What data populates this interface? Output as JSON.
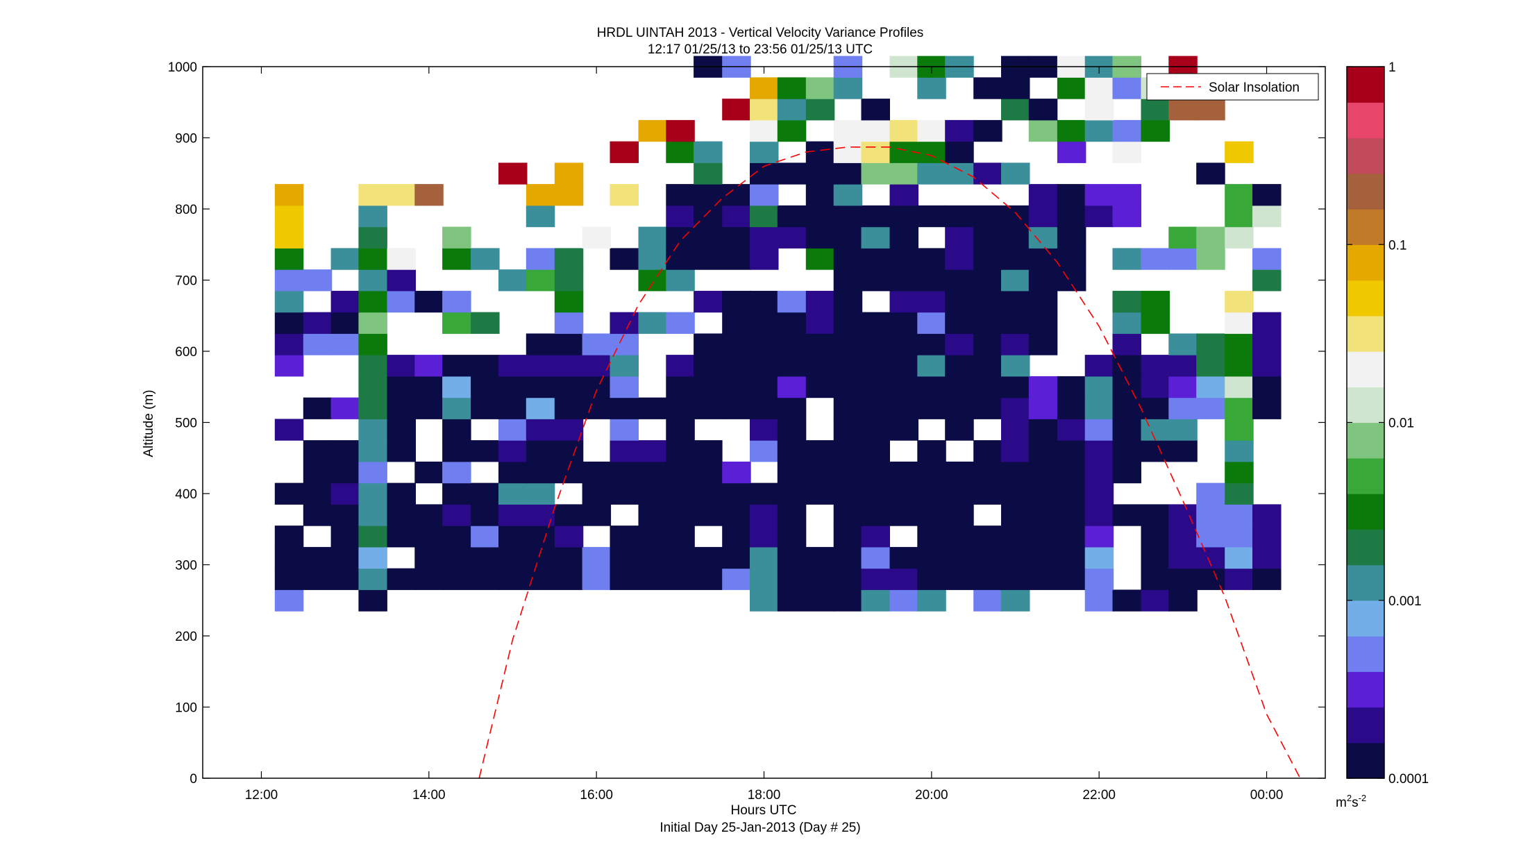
{
  "chart_data": {
    "type": "heatmap",
    "title_line1": "HRDL UINTAH 2013 - Vertical Velocity Variance Profiles",
    "title_line2": "12:17 01/25/13 to 23:56 01/25/13  UTC",
    "xlabel": "Hours UTC",
    "xlabel_sub": "Initial Day 25-Jan-2013 (Day # 25)",
    "ylabel": "Altitude (m)",
    "x_range_hours": [
      11.3,
      24.7
    ],
    "y_range_m": [
      0,
      1000
    ],
    "x_ticks": [
      {
        "value": 12,
        "label": "12:00"
      },
      {
        "value": 14,
        "label": "14:00"
      },
      {
        "value": 16,
        "label": "16:00"
      },
      {
        "value": 18,
        "label": "18:00"
      },
      {
        "value": 20,
        "label": "20:00"
      },
      {
        "value": 22,
        "label": "22:00"
      },
      {
        "value": 24,
        "label": "00:00"
      }
    ],
    "y_ticks": [
      0,
      100,
      200,
      300,
      400,
      500,
      600,
      700,
      800,
      900,
      1000
    ],
    "colorbar": {
      "scale": "log",
      "range": [
        0.0001,
        1
      ],
      "ticks": [
        {
          "value": 1,
          "label": "1"
        },
        {
          "value": 0.1,
          "label": "0.1"
        },
        {
          "value": 0.01,
          "label": "0.01"
        },
        {
          "value": 0.001,
          "label": "0.001"
        },
        {
          "value": 0.0001,
          "label": "0.0001"
        }
      ],
      "unit_base": "m",
      "unit_sup1": "2",
      "unit_mid": "s",
      "unit_sup2": "-2",
      "colors_low_to_high": [
        "#0b0b45",
        "#2a0a88",
        "#5b1fd6",
        "#6f7ff0",
        "#74aee8",
        "#3a8f9a",
        "#1e7a45",
        "#0a7a0a",
        "#38a838",
        "#7fc47f",
        "#cfe5cf",
        "#f2f2f2",
        "#f2e27a",
        "#f0c800",
        "#e5a800",
        "#c07a28",
        "#a5603c",
        "#c04a5a",
        "#e8456a",
        "#a8001a"
      ]
    },
    "legend": {
      "label": "Solar Insolation",
      "placement": "top-right",
      "color": "#ff0000"
    },
    "solar_insolation_curve_hours": [
      14.6,
      15.0,
      15.5,
      16.0,
      16.5,
      17.0,
      17.5,
      18.0,
      18.5,
      19.0,
      19.5,
      20.0,
      20.5,
      21.0,
      21.5,
      22.0,
      22.5,
      23.0,
      23.5,
      24.0,
      24.4
    ],
    "solar_insolation_curve_altitude": [
      0,
      195,
      380,
      545,
      665,
      755,
      815,
      860,
      880,
      887,
      887,
      875,
      845,
      795,
      725,
      635,
      520,
      390,
      255,
      90,
      0
    ],
    "time_hours": [
      12.33,
      12.67,
      13.0,
      13.33,
      13.67,
      14.0,
      14.33,
      14.67,
      15.0,
      15.33,
      15.67,
      16.0,
      16.33,
      16.67,
      17.0,
      17.33,
      17.67,
      18.0,
      18.33,
      18.67,
      19.0,
      19.33,
      19.67,
      20.0,
      20.33,
      20.67,
      21.0,
      21.33,
      21.67,
      22.0,
      22.33,
      22.67,
      23.0,
      23.33,
      23.67,
      24.0
    ],
    "altitude_bins_m": [
      250,
      280,
      310,
      340,
      370,
      400,
      430,
      460,
      490,
      520,
      550,
      580,
      610,
      640,
      670,
      700,
      730,
      760,
      790,
      820,
      850,
      880,
      910,
      940,
      970,
      1000
    ],
    "log10_variance_grid_note": "rows = altitude bins (low to high), columns = time_hours; null = no data",
    "log10_variance": [
      [
        -3.4,
        null,
        null,
        -3.9,
        null,
        null,
        null,
        null,
        null,
        null,
        null,
        null,
        null,
        null,
        null,
        null,
        null,
        -3.0,
        -4.0,
        -4.0,
        -4.0,
        -3.0,
        -3.3,
        -3.0,
        null,
        -3.4,
        -3.0,
        null,
        null,
        -3.4,
        -4.0,
        -3.7,
        -4.0,
        null,
        null,
        null
      ],
      [
        -4.0,
        -4.0,
        -4.0,
        -3.0,
        -4.0,
        -4.0,
        -4.0,
        -4.0,
        -4.0,
        -4.0,
        -4.0,
        -3.2,
        -4.0,
        -4.0,
        -4.0,
        -4.0,
        -3.3,
        -3.0,
        -4.0,
        -4.0,
        -4.0,
        -3.7,
        -3.7,
        -4.0,
        -4.0,
        -4.0,
        -4.0,
        -4.0,
        -4.0,
        -3.4,
        null,
        -4.0,
        -4.0,
        -4.0,
        -3.7,
        -3.9
      ],
      [
        -3.9,
        -4.0,
        -4.0,
        -3.1,
        null,
        -4.0,
        -4.0,
        -4.0,
        -4.0,
        -4.0,
        -4.0,
        -3.3,
        -4.0,
        -4.0,
        -4.0,
        -4.0,
        -4.0,
        -3.0,
        -4.0,
        -4.0,
        -3.9,
        -3.4,
        -4.0,
        -4.0,
        -4.0,
        -4.0,
        -4.0,
        -4.0,
        -4.0,
        -3.1,
        null,
        -3.9,
        -3.8,
        -3.8,
        -3.1,
        -3.8
      ],
      [
        -4.0,
        null,
        -3.9,
        -2.8,
        -4.0,
        -4.0,
        -4.0,
        -3.4,
        -4.0,
        -4.0,
        -3.7,
        null,
        -4.0,
        -4.0,
        -4.0,
        null,
        -3.9,
        -3.8,
        -4.0,
        null,
        -4.0,
        -3.8,
        null,
        -4.0,
        -3.9,
        -4.0,
        -3.9,
        -3.9,
        -4.0,
        -3.5,
        null,
        -4.0,
        -3.8,
        -3.2,
        -3.2,
        -3.8
      ],
      [
        null,
        -4.0,
        -4.0,
        -3.0,
        -4.0,
        -4.0,
        -3.7,
        -4.0,
        -3.8,
        -3.7,
        -4.0,
        -4.0,
        null,
        -4.0,
        -4.0,
        -4.0,
        -4.0,
        -3.7,
        -4.0,
        null,
        -4.0,
        -4.0,
        -4.0,
        -4.0,
        -3.9,
        null,
        -4.0,
        -4.0,
        -4.0,
        -3.7,
        -3.9,
        -4.0,
        -3.8,
        -3.2,
        -3.3,
        -3.8
      ],
      [
        -4.0,
        -4.0,
        -3.8,
        -2.9,
        -4.0,
        null,
        -4.0,
        -3.9,
        -3.0,
        -3.0,
        null,
        -4.0,
        -4.0,
        -4.0,
        -3.9,
        -4.0,
        -4.0,
        -3.9,
        -4.0,
        -4.0,
        -3.9,
        -4.0,
        -4.0,
        -4.0,
        -3.9,
        -4.0,
        -4.0,
        -4.0,
        -4.0,
        -3.7,
        null,
        null,
        null,
        -3.4,
        -2.7,
        null
      ],
      [
        null,
        -4.0,
        -4.0,
        -3.4,
        null,
        -4.0,
        -3.3,
        null,
        -4.0,
        -4.0,
        -4.0,
        -4.0,
        -4.0,
        -4.0,
        -4.0,
        -4.0,
        -3.5,
        null,
        -4.0,
        -4.0,
        -4.0,
        -4.0,
        -4.0,
        -4.0,
        -4.0,
        -4.0,
        -4.0,
        -4.0,
        -4.0,
        -3.7,
        -4.0,
        null,
        null,
        null,
        -2.5,
        null
      ],
      [
        null,
        -4.0,
        -4.0,
        -2.9,
        -3.9,
        null,
        -4.0,
        -4.0,
        -3.8,
        -4.0,
        -3.9,
        null,
        -3.8,
        -3.8,
        -3.9,
        -4.0,
        null,
        -3.4,
        -3.9,
        -4.0,
        -4.0,
        -4.0,
        null,
        -4.0,
        null,
        -4.0,
        -3.7,
        -4.0,
        -3.9,
        -3.8,
        -4.0,
        -4.0,
        -4.0,
        null,
        -2.9,
        null
      ],
      [
        -3.8,
        null,
        null,
        -3.0,
        -4.0,
        null,
        -4.0,
        null,
        -3.4,
        -3.6,
        -3.6,
        null,
        -3.4,
        null,
        -4.0,
        null,
        null,
        -3.6,
        -3.9,
        null,
        -4.0,
        -3.9,
        -4.0,
        null,
        -4.0,
        null,
        -3.7,
        -4.0,
        -3.8,
        -3.3,
        -3.9,
        -3.0,
        -3.0,
        null,
        -2.4,
        null
      ],
      [
        null,
        -4.0,
        -3.5,
        -2.7,
        -4.0,
        -4.0,
        -3.0,
        -4.0,
        -4.0,
        -3.1,
        -4.0,
        -4.0,
        -4.0,
        -4.0,
        -3.9,
        -4.0,
        -4.0,
        -4.0,
        -4.0,
        null,
        -4.0,
        -4.0,
        -4.0,
        -4.0,
        -4.0,
        -4.0,
        -3.7,
        -3.5,
        -4.0,
        -3.0,
        -4.0,
        -4.0,
        -3.2,
        -3.4,
        -2.4,
        -4.0
      ],
      [
        null,
        null,
        null,
        -2.7,
        -4.0,
        -4.0,
        -3.1,
        -4.0,
        -4.0,
        -4.0,
        -4.0,
        -4.0,
        -3.2,
        null,
        -4.0,
        -4.0,
        -4.0,
        -4.0,
        -3.5,
        -4.0,
        -4.0,
        -4.0,
        -4.0,
        -4.0,
        -4.0,
        -4.0,
        -4.0,
        -3.5,
        -4.0,
        -3.0,
        -4.0,
        -3.7,
        -3.5,
        -3.1,
        -1.9,
        -4.0
      ],
      [
        -3.5,
        null,
        null,
        -2.8,
        -3.7,
        -3.5,
        -4.0,
        -4.0,
        -3.7,
        -3.8,
        -3.8,
        -3.6,
        -3.0,
        null,
        -3.6,
        -4.0,
        -4.0,
        -4.0,
        -4.0,
        -4.0,
        -4.0,
        -4.0,
        -4.0,
        -3.0,
        -4.0,
        -4.0,
        -3.0,
        null,
        null,
        -3.7,
        -3.9,
        -3.6,
        -3.7,
        -2.8,
        -2.5,
        -3.8
      ],
      [
        -3.7,
        -3.4,
        -3.4,
        -2.6,
        null,
        null,
        null,
        null,
        null,
        -4.0,
        -4.0,
        -3.3,
        -3.3,
        null,
        null,
        -4.0,
        -4.0,
        -4.0,
        -4.0,
        -4.0,
        -4.0,
        -4.0,
        -4.0,
        -3.9,
        -3.7,
        -4.0,
        -3.7,
        -4.0,
        null,
        null,
        -3.6,
        null,
        -2.9,
        -2.8,
        -2.6,
        -3.8
      ],
      [
        -4.0,
        -3.6,
        -4.0,
        -2.2,
        null,
        null,
        -2.4,
        -2.8,
        null,
        null,
        -3.4,
        null,
        -3.6,
        -2.9,
        -3.4,
        null,
        -4.0,
        -4.0,
        -4.0,
        -3.8,
        -4.0,
        -4.0,
        -4.0,
        -3.4,
        -4.0,
        -4.0,
        -3.9,
        -3.9,
        null,
        null,
        -2.9,
        -2.6,
        null,
        null,
        -1.8,
        -3.6
      ],
      [
        -2.9,
        null,
        -3.7,
        -2.5,
        -3.4,
        -4.0,
        -3.4,
        null,
        null,
        null,
        -2.6,
        null,
        null,
        null,
        null,
        -3.7,
        -4.0,
        -3.9,
        -3.4,
        -3.7,
        -4.0,
        null,
        -3.7,
        -3.7,
        -4.0,
        -4.0,
        -4.0,
        -3.9,
        null,
        null,
        -2.7,
        -2.5,
        null,
        null,
        -1.6,
        null
      ],
      [
        -3.3,
        -3.3,
        null,
        -2.9,
        -3.7,
        null,
        null,
        null,
        -3.0,
        -2.3,
        -2.8,
        null,
        null,
        -2.6,
        -2.9,
        null,
        null,
        null,
        null,
        null,
        -4.0,
        -4.0,
        -4.0,
        -4.0,
        -4.0,
        -4.0,
        -3.0,
        -3.9,
        -4.0,
        null,
        null,
        null,
        null,
        null,
        null,
        -2.8
      ],
      [
        -2.6,
        null,
        -2.9,
        -2.6,
        -1.7,
        null,
        -2.6,
        -2.9,
        null,
        -3.4,
        -2.7,
        null,
        -3.9,
        -2.9,
        -4.0,
        -4.0,
        -4.0,
        -3.8,
        null,
        -2.6,
        -4.0,
        -4.0,
        -4.0,
        -4.0,
        -3.7,
        -4.0,
        -4.0,
        -3.9,
        -3.9,
        null,
        -2.9,
        -3.3,
        -3.3,
        -2.2,
        null,
        -3.3
      ],
      [
        -1.4,
        null,
        null,
        -2.7,
        null,
        null,
        -2.2,
        null,
        null,
        null,
        null,
        -1.8,
        null,
        -2.9,
        -3.9,
        -4.0,
        -4.0,
        -3.6,
        -3.8,
        -4.0,
        -4.0,
        -3.0,
        -4.0,
        null,
        -3.8,
        -4.0,
        -4.0,
        -3.0,
        -4.0,
        null,
        null,
        null,
        -2.3,
        -2.2,
        -1.9,
        null
      ],
      [
        -1.4,
        null,
        null,
        -3.0,
        null,
        null,
        null,
        null,
        null,
        -3.0,
        null,
        null,
        null,
        null,
        -3.8,
        -4.0,
        -3.6,
        -2.8,
        -4.0,
        -4.0,
        -4.0,
        -4.0,
        -4.0,
        -4.0,
        -4.0,
        -4.0,
        -4.0,
        -3.7,
        -4.0,
        -3.7,
        -3.5,
        null,
        null,
        null,
        -2.3,
        -1.9
      ],
      [
        -1.2,
        null,
        null,
        -1.6,
        -1.6,
        -0.8,
        null,
        null,
        null,
        -1.2,
        -1.1,
        null,
        -1.6,
        null,
        -4.0,
        -4.0,
        -4.0,
        -3.4,
        null,
        -4.0,
        -3.0,
        null,
        -3.8,
        null,
        null,
        null,
        null,
        -3.6,
        -4.0,
        -3.5,
        -3.5,
        null,
        null,
        null,
        -2.4,
        -3.9
      ],
      [
        null,
        null,
        null,
        null,
        null,
        null,
        null,
        null,
        -0.2,
        null,
        -1.2,
        null,
        null,
        null,
        null,
        -2.7,
        null,
        -4.0,
        -4.0,
        -4.0,
        -4.0,
        -2.1,
        -2.1,
        -3.0,
        -3.0,
        -3.6,
        -3.0,
        null,
        null,
        null,
        null,
        null,
        null,
        -3.9,
        null,
        null
      ],
      [
        null,
        null,
        null,
        null,
        null,
        null,
        null,
        null,
        null,
        null,
        null,
        null,
        -0.1,
        null,
        -2.6,
        -3.0,
        null,
        -3.0,
        null,
        -4.0,
        -1.8,
        -1.6,
        -2.6,
        -2.6,
        -3.9,
        null,
        null,
        null,
        -3.5,
        null,
        -1.7,
        null,
        null,
        null,
        -1.3,
        null
      ],
      [
        null,
        null,
        null,
        null,
        null,
        null,
        null,
        null,
        null,
        null,
        null,
        null,
        null,
        -1.1,
        -0.1,
        null,
        null,
        -1.7,
        -2.6,
        null,
        -1.8,
        -1.8,
        -1.6,
        -1.7,
        -3.7,
        -4.0,
        null,
        -2.2,
        -2.6,
        -3.0,
        -3.4,
        -2.6,
        null,
        null,
        null,
        null
      ],
      [
        null,
        null,
        null,
        null,
        null,
        null,
        null,
        null,
        null,
        null,
        null,
        null,
        null,
        null,
        null,
        null,
        -0.1,
        -1.6,
        -3.0,
        -2.7,
        null,
        -4.0,
        null,
        null,
        null,
        null,
        -2.7,
        -4.0,
        null,
        -1.7,
        null,
        -2.7,
        -0.7,
        -0.7,
        null,
        null
      ],
      [
        null,
        null,
        null,
        null,
        null,
        null,
        null,
        null,
        null,
        null,
        null,
        null,
        null,
        null,
        null,
        null,
        null,
        -1.2,
        -2.5,
        -2.1,
        -3.0,
        null,
        null,
        -2.9,
        null,
        -4.0,
        -4.0,
        null,
        -2.6,
        -1.8,
        -3.4,
        -1.9,
        -1.4,
        null,
        null,
        null
      ],
      [
        null,
        null,
        null,
        null,
        null,
        null,
        null,
        null,
        null,
        null,
        null,
        null,
        null,
        null,
        null,
        -4.0,
        -3.4,
        null,
        null,
        null,
        -3.4,
        null,
        -2.0,
        -2.6,
        -3.0,
        null,
        -3.9,
        -4.0,
        -1.8,
        -2.9,
        -2.2,
        null,
        -0.2,
        null,
        null,
        null
      ]
    ]
  }
}
